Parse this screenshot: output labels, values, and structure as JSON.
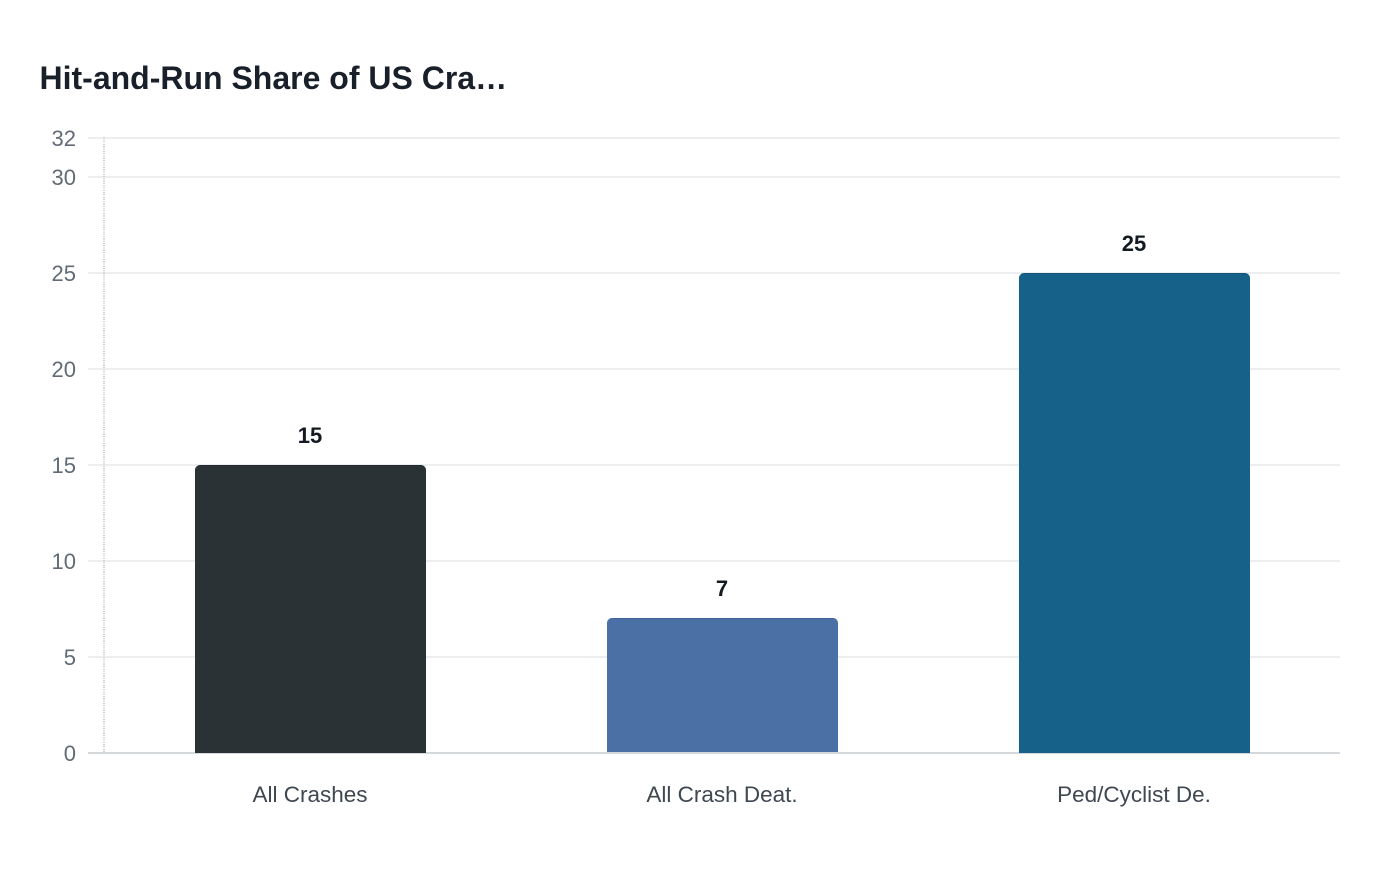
{
  "chart_data": {
    "type": "bar",
    "title": "Hit-and-Run Share of US Cra…",
    "categories": [
      "All Crashes",
      "All Crash Deat.",
      "Ped/Cyclist De."
    ],
    "values": [
      15,
      7,
      25
    ],
    "value_labels": [
      "15",
      "7",
      "25"
    ],
    "y_ticks": [
      0,
      5,
      10,
      15,
      20,
      25,
      30,
      32
    ],
    "ylim": [
      0,
      32
    ],
    "xlabel": "",
    "ylabel": "",
    "grid": true,
    "legend": false,
    "bar_colors": [
      "#2a3236",
      "#4b70a5",
      "#166189"
    ],
    "bar_border_colors": [
      "#232a2e",
      "#40639b",
      "#125578"
    ]
  },
  "styles": {
    "title_color": "#1a202a",
    "tick_label_color": "#626b75",
    "category_label_color": "#3f4751",
    "value_label_color": "#141a21",
    "gridline_color": "#eceef0",
    "baseline_color": "#d5d8da",
    "axis_line_color": "#ccd1d6",
    "background_color": "#ffffff"
  }
}
